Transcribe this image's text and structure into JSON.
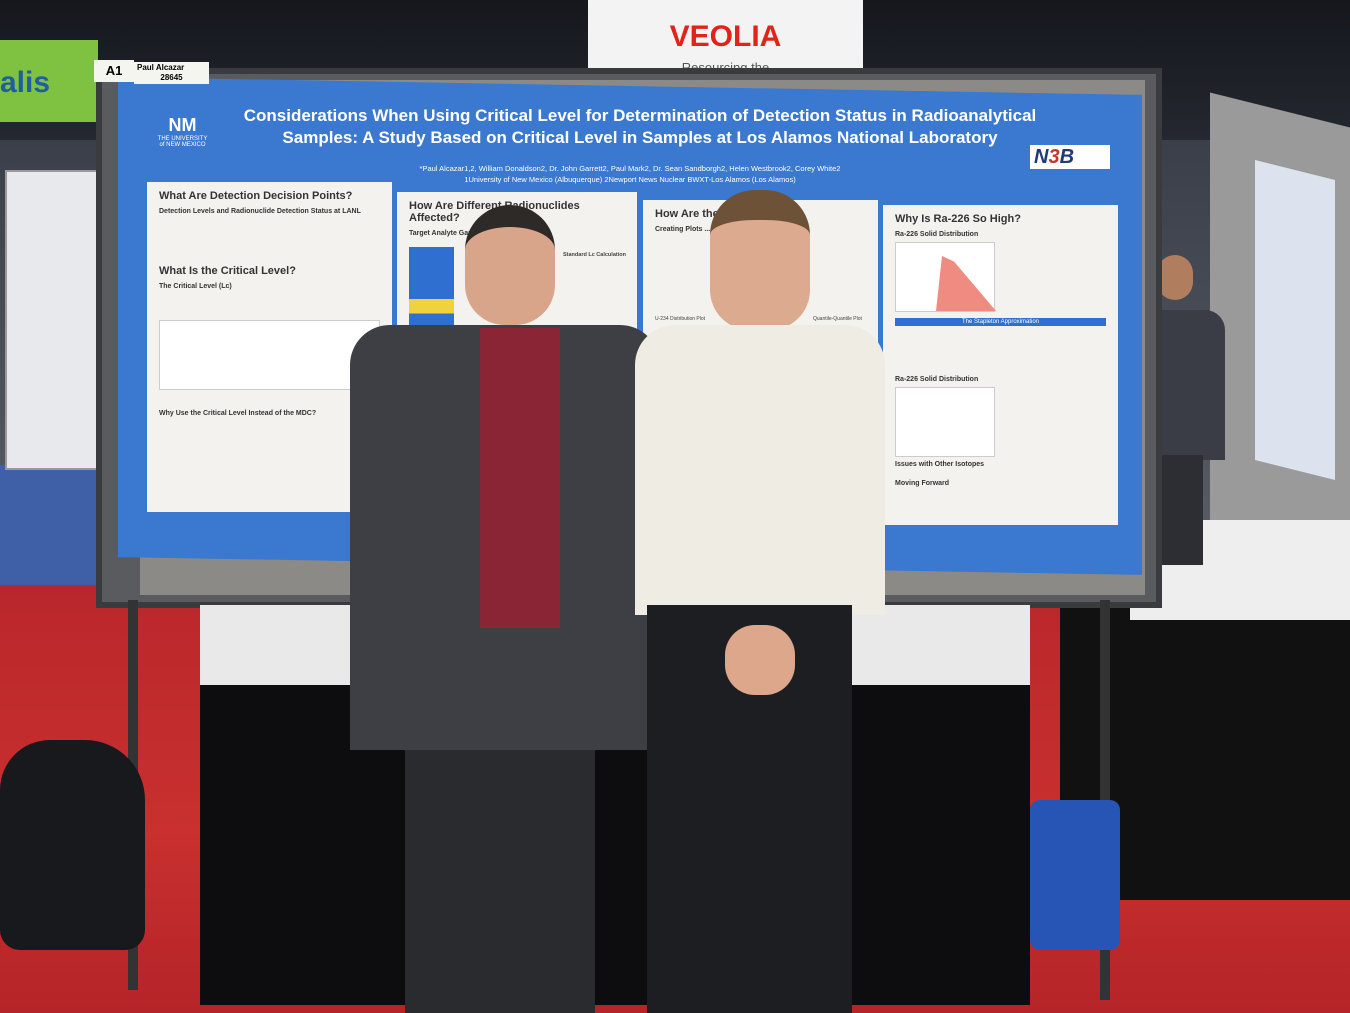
{
  "background": {
    "left_sign_text": "alis",
    "overhead_sign": {
      "logo": "VEOLIA",
      "tagline": "Resourcing the"
    }
  },
  "booth": {
    "number": "A1",
    "presenter": "Paul Alcazar",
    "id": "28645"
  },
  "poster": {
    "title": "Considerations When Using Critical Level for Determination of Detection Status in Radioanalytical Samples: A Study Based on Critical Level in Samples at Los Alamos National Laboratory",
    "authors": "*Paul Alcazar1,2, William Donaldson2, Dr. John Garrett2, Paul Mark2, Dr. Sean Sandborgh2, Helen Westbrook2, Corey White2",
    "affiliations": "1University of New Mexico (Albuquerque) 2Newport News Nuclear BWXT-Los Alamos (Los Alamos)",
    "logos": {
      "left": "THE UNIVERSITY of NEW MEXICO",
      "right": "N3B Los Alamos"
    },
    "sections": [
      {
        "heading": "What Are Detection Decision Points?",
        "subheading": "Detection Levels and Radionuclide Detection Status at LANL",
        "heading2": "What Is the Critical Level?",
        "subheading2": "The Critical Level (Lc)",
        "subheading3": "Why Use the Critical Level Instead of the MDC?"
      },
      {
        "heading": "How Are Different Radionuclides Affected?",
        "subheading": "Target Analyte Gamma",
        "subheading2": "Standard Lc Calculation"
      },
      {
        "heading": "How Are the ...",
        "subheading": "Creating Plots ...",
        "chart1": "U-234 Distribution Plot",
        "chart2": "Quantile-Quantile Plot"
      },
      {
        "heading": "Why Is Ra-226 So High?",
        "chart1": "Ra-226 Solid Distribution",
        "banner": "The Stapleton Approximation",
        "chart2": "Ra-226 Solid Distribution",
        "subheading": "Issues with Other Isotopes",
        "subheading2": "Moving Forward"
      }
    ]
  }
}
